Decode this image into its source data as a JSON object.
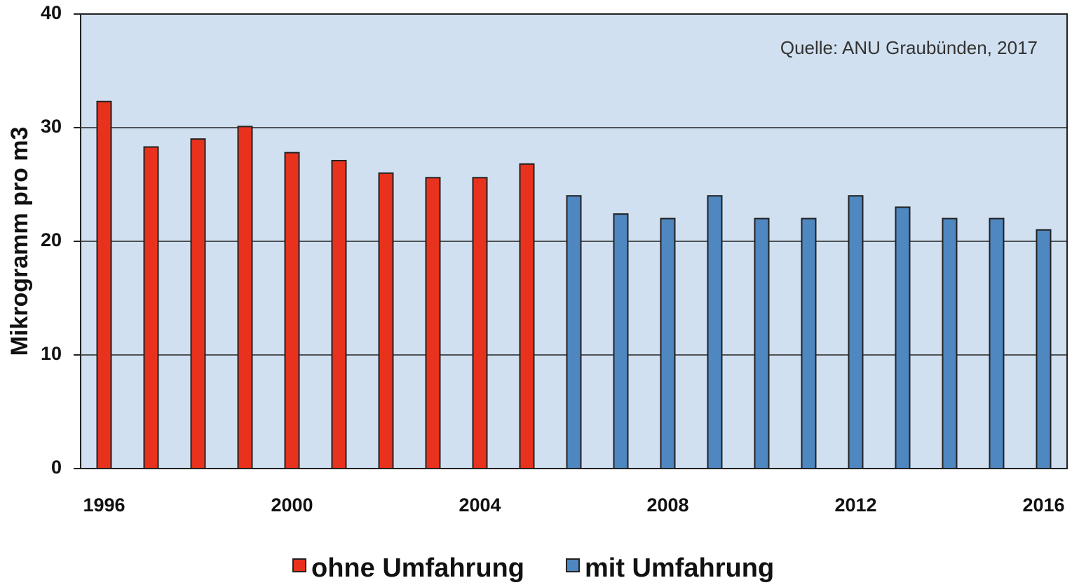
{
  "chart_data": {
    "type": "bar",
    "y_label": "Mikrogramm pro m3",
    "annotation": "Quelle: ANU Graubünden, 2017",
    "categories": [
      "1996",
      null,
      null,
      null,
      "2000",
      null,
      null,
      null,
      "2004",
      null,
      null,
      null,
      "2008",
      null,
      null,
      null,
      "2012",
      null,
      null,
      null,
      "2016"
    ],
    "series": [
      {
        "name": "ohne Umfahrung",
        "color": "#e8321e",
        "values": [
          32.3,
          28.3,
          29,
          30.1,
          27.8,
          27.1,
          26,
          25.6,
          25.6,
          26.8,
          null,
          null,
          null,
          null,
          null,
          null,
          null,
          null,
          null,
          null,
          null
        ]
      },
      {
        "name": "mit Umfahrung",
        "color": "#4f87c0",
        "values": [
          null,
          null,
          null,
          null,
          null,
          null,
          null,
          null,
          null,
          null,
          24,
          22.4,
          22,
          24,
          22,
          22,
          24,
          23,
          22,
          22,
          21
        ]
      }
    ],
    "ylim": [
      0,
      40
    ],
    "yticks": [
      0,
      10,
      20,
      30,
      40
    ],
    "grid": true,
    "legend": "bottom"
  }
}
